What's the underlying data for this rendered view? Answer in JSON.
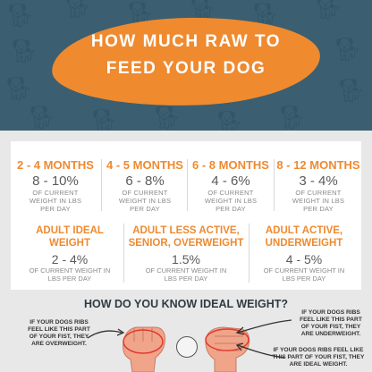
{
  "header": {
    "title_line1": "HOW MUCH RAW TO",
    "title_line2": "FEED YOUR DOG"
  },
  "age_groups": [
    {
      "label": "2 - 4 MONTHS",
      "percent": "8 - 10%",
      "desc": [
        "OF CURRENT",
        "WEIGHT IN LBS",
        "PER DAY"
      ]
    },
    {
      "label": "4 - 5 MONTHS",
      "percent": "6 - 8%",
      "desc": [
        "OF CURRENT",
        "WEIGHT IN LBS",
        "PER DAY"
      ]
    },
    {
      "label": "6 - 8 MONTHS",
      "percent": "4 - 6%",
      "desc": [
        "OF CURRENT",
        "WEIGHT IN LBS",
        "PER DAY"
      ]
    },
    {
      "label": "8 - 12 MONTHS",
      "percent": "3 - 4%",
      "desc": [
        "OF CURRENT",
        "WEIGHT IN LBS",
        "PER DAY"
      ]
    }
  ],
  "activity_groups": [
    {
      "label_lines": [
        "ADULT IDEAL",
        "WEIGHT"
      ],
      "percent": "2 - 4%",
      "desc": [
        "OF CURRENT WEIGHT IN",
        "LBS PER DAY"
      ]
    },
    {
      "label_lines": [
        "ADULT LESS ACTIVE,",
        "SENIOR, OVERWEIGHT"
      ],
      "percent": "1.5%",
      "desc": [
        "OF CURRENT WEIGHT IN",
        "LBS PER DAY"
      ]
    },
    {
      "label_lines": [
        "ADULT ACTIVE,",
        "UNDERWEIGHT"
      ],
      "percent": "4 - 5%",
      "desc": [
        "OF CURRENT WEIGHT IN",
        "LBS PER DAY"
      ]
    }
  ],
  "question": "HOW DO YOU KNOW IDEAL WEIGHT?",
  "notes": {
    "overweight": [
      "IF YOUR DOGS RIBS",
      "FEEL LIKE THIS PART",
      "OF YOUR FIST, THEY",
      "ARE OVERWEIGHT."
    ],
    "underweight": [
      "IF YOUR DOGS RIBS",
      "FEEL LIKE THIS PART",
      "OF YOUR FIST, THEY",
      "ARE UNDERWEIGHT."
    ],
    "ideal": [
      "IF YOUR DOGS RIBS FEEL LIKE",
      "THIS PART OF YOUR FIST, THEY",
      "ARE IDEAL WEIGHT."
    ]
  },
  "colors": {
    "header_bg": "#3b5f70",
    "accent": "#ef8a2f",
    "body_bg": "#e8e8e8",
    "card": "#ffffff"
  },
  "icons": [
    "dog-silhouette-icon",
    "fist-icon",
    "arrow-icon",
    "badge-logo-icon"
  ]
}
